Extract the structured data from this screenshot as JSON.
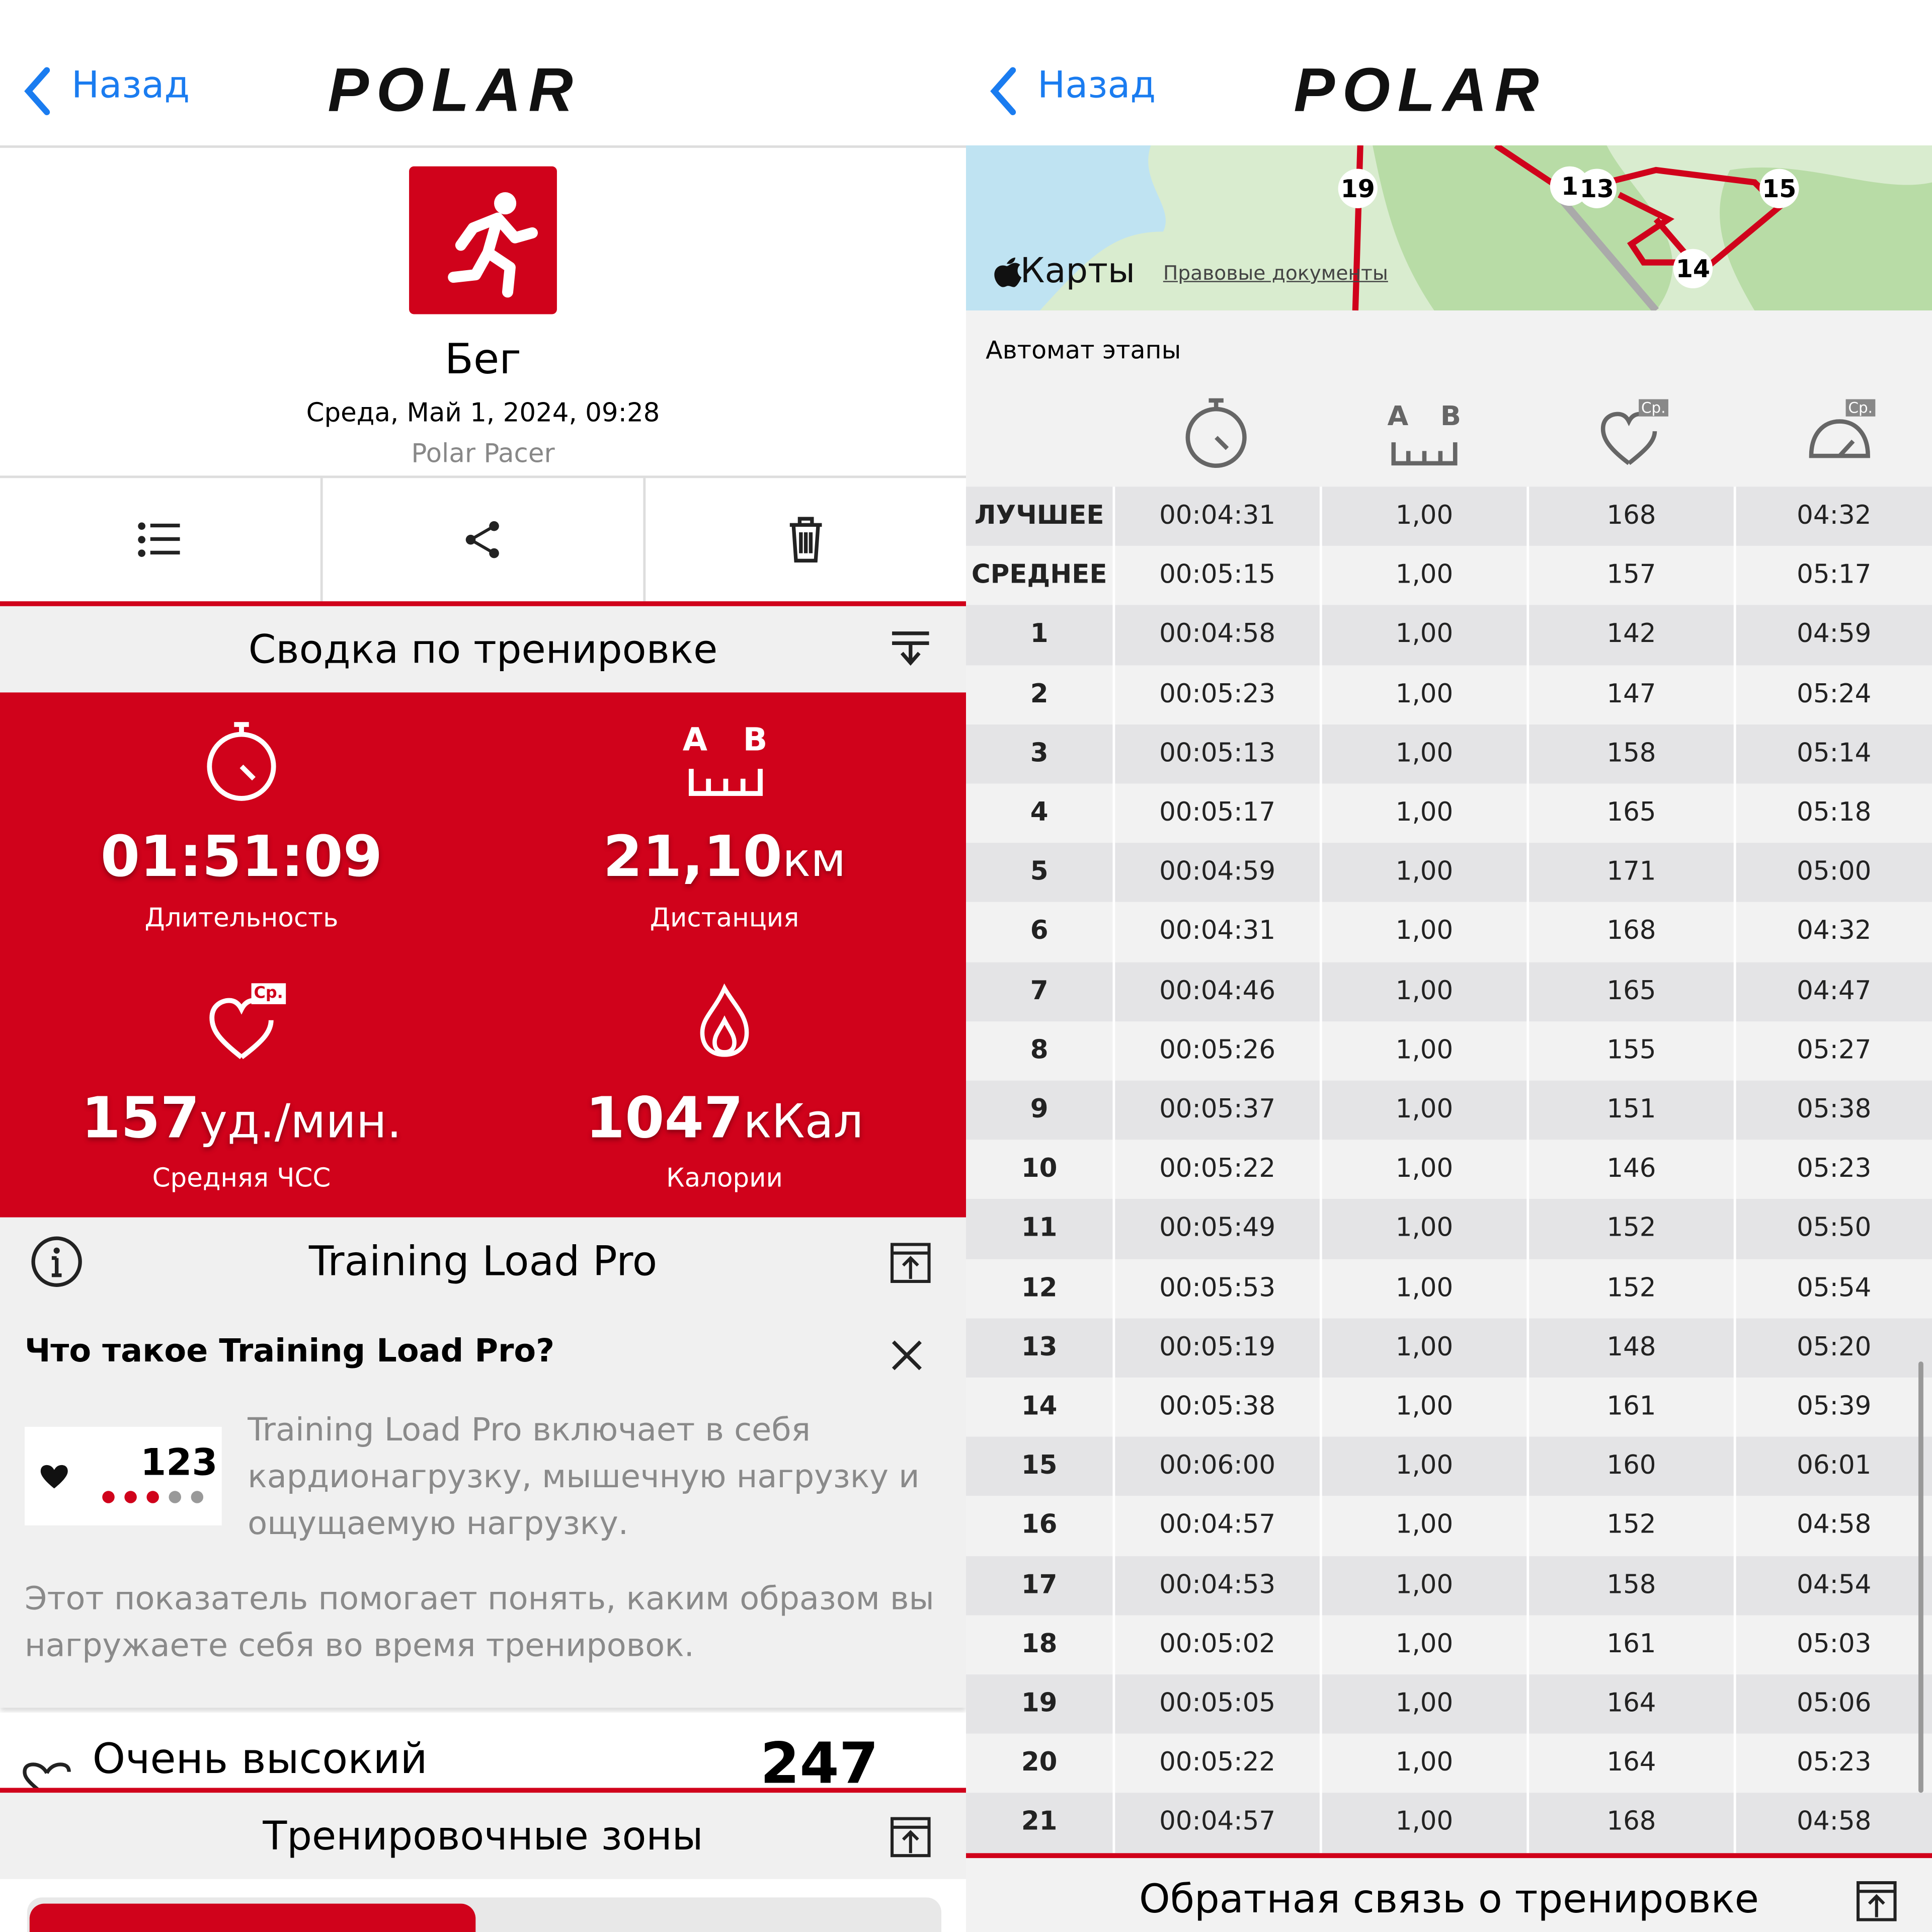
{
  "left": {
    "header": {
      "back": "Назад",
      "logo": "POLAR"
    },
    "activity": {
      "name": "Бег",
      "date": "Среда, Май 1, 2024, 09:28",
      "device": "Polar Pacer"
    },
    "summary": {
      "title": "Сводка по тренировке",
      "distance_icon": [
        "A",
        "B"
      ],
      "hr_icon": "Ср.",
      "stats": [
        {
          "value": "01:51:09",
          "label": "Длительность"
        },
        {
          "value": "21,10",
          "unit": "км",
          "label": "Дистанция"
        },
        {
          "value": "157",
          "unit": "уд./мин.",
          "label": "Средняя ЧСС"
        },
        {
          "value": "1047",
          "unit": "кКал",
          "label": "Калории"
        }
      ]
    },
    "training_load": {
      "title": "Training Load Pro",
      "question": "Что такое Training Load Pro?",
      "badge": "123",
      "text1": "Training Load Pro включает в себя кардионагрузку, мышечную нагрузку и ощущаемую нагрузку.",
      "text2": "Этот показатель помогает понять, каким образом вы нагружаете себя во время тренировок.",
      "level": "Очень высокий",
      "level_value": "247"
    },
    "zones": {
      "title": "Тренировочные зоны"
    }
  },
  "right": {
    "header": {
      "back": "Назад",
      "logo": "POLAR"
    },
    "map": {
      "markers": [
        "19",
        "1",
        "13",
        "15",
        "14"
      ],
      "brand": "Карты",
      "legal": "Правовые документы"
    },
    "laps": {
      "title": "Автомат этапы",
      "distance_icon": [
        "A",
        "B"
      ],
      "avg_icon": "Ср.",
      "rows": [
        [
          "ЛУЧШЕЕ",
          "00:04:31",
          "1,00",
          "168",
          "04:32"
        ],
        [
          "СРЕДНЕЕ",
          "00:05:15",
          "1,00",
          "157",
          "05:17"
        ],
        [
          "1",
          "00:04:58",
          "1,00",
          "142",
          "04:59"
        ],
        [
          "2",
          "00:05:23",
          "1,00",
          "147",
          "05:24"
        ],
        [
          "3",
          "00:05:13",
          "1,00",
          "158",
          "05:14"
        ],
        [
          "4",
          "00:05:17",
          "1,00",
          "165",
          "05:18"
        ],
        [
          "5",
          "00:04:59",
          "1,00",
          "171",
          "05:00"
        ],
        [
          "6",
          "00:04:31",
          "1,00",
          "168",
          "04:32"
        ],
        [
          "7",
          "00:04:46",
          "1,00",
          "165",
          "04:47"
        ],
        [
          "8",
          "00:05:26",
          "1,00",
          "155",
          "05:27"
        ],
        [
          "9",
          "00:05:37",
          "1,00",
          "151",
          "05:38"
        ],
        [
          "10",
          "00:05:22",
          "1,00",
          "146",
          "05:23"
        ],
        [
          "11",
          "00:05:49",
          "1,00",
          "152",
          "05:50"
        ],
        [
          "12",
          "00:05:53",
          "1,00",
          "152",
          "05:54"
        ],
        [
          "13",
          "00:05:19",
          "1,00",
          "148",
          "05:20"
        ],
        [
          "14",
          "00:05:38",
          "1,00",
          "161",
          "05:39"
        ],
        [
          "15",
          "00:06:00",
          "1,00",
          "160",
          "06:01"
        ],
        [
          "16",
          "00:04:57",
          "1,00",
          "152",
          "04:58"
        ],
        [
          "17",
          "00:04:53",
          "1,00",
          "158",
          "04:54"
        ],
        [
          "18",
          "00:05:02",
          "1,00",
          "161",
          "05:03"
        ],
        [
          "19",
          "00:05:05",
          "1,00",
          "164",
          "05:06"
        ],
        [
          "20",
          "00:05:22",
          "1,00",
          "164",
          "05:23"
        ],
        [
          "21",
          "00:04:57",
          "1,00",
          "168",
          "04:58"
        ]
      ]
    },
    "feedback": {
      "title": "Обратная связь о тренировке"
    }
  }
}
